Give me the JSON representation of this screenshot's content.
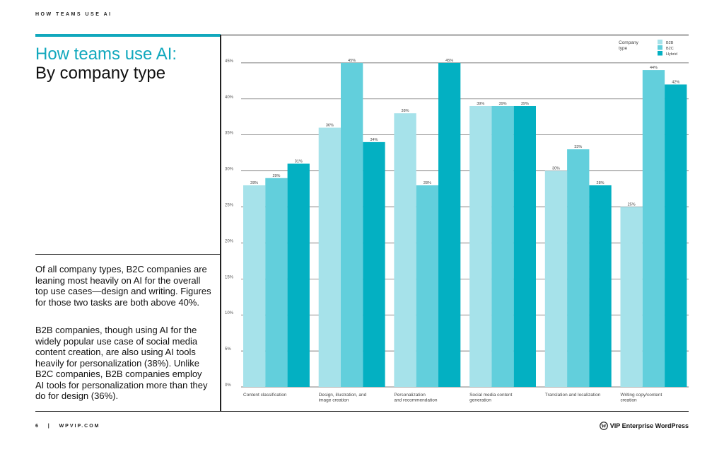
{
  "header": {
    "running_head": "HOW TEAMS USE AI"
  },
  "title": {
    "line1": "How teams use AI:",
    "line2": "By company type"
  },
  "body": {
    "paragraph1": "Of all company types, B2C companies are leaning most heavily on AI for the overall top use cases—design and writing. Figures for those two tasks are both above 40%.",
    "paragraph2": "B2B companies, though using AI for the widely popular use case of social media content creation, are also using AI tools heavily for personalization (38%). Unlike B2C companies, B2B companies employ AI tools for personalization more than they do for design (36%)."
  },
  "footer": {
    "page_number": "6",
    "separator": "|",
    "site": "WPVIP.COM",
    "brand_mark": "W",
    "brand": "VIP Enterprise WordPress"
  },
  "colors": {
    "accent": "#11a8bd",
    "b2b": "#a6e2ea",
    "b2c": "#62cfdc",
    "hybrid": "#03b0c2"
  },
  "chart_data": {
    "type": "bar",
    "categories": [
      [
        "Content classification"
      ],
      [
        "Design, illustration, and",
        "image creation"
      ],
      [
        "Personalization",
        "and recommendation"
      ],
      [
        "Social media content",
        "generation"
      ],
      [
        "Translation and localization"
      ],
      [
        "Writing copy/content",
        "creation"
      ]
    ],
    "series": [
      {
        "name": "B2B",
        "values": [
          28,
          36,
          38,
          39,
          30,
          25
        ]
      },
      {
        "name": "B2C",
        "values": [
          29,
          45,
          28,
          39,
          33,
          44
        ]
      },
      {
        "name": "Hybrid",
        "values": [
          31,
          34,
          45,
          39,
          28,
          42
        ]
      }
    ],
    "data_labels": [
      [
        "28%",
        "36%",
        "38%",
        "39%",
        "30%",
        "25%"
      ],
      [
        "29%",
        "45%",
        "28%",
        "39%",
        "33%",
        "44%"
      ],
      [
        "31%",
        "34%",
        "45%",
        "39%",
        "28%",
        "42%"
      ]
    ],
    "yticks": [
      0,
      5,
      10,
      15,
      20,
      25,
      30,
      35,
      40,
      45
    ],
    "ytick_labels": [
      "0%",
      "5%",
      "10%",
      "15%",
      "20%",
      "25%",
      "30%",
      "35%",
      "40%",
      "45%"
    ],
    "ylim": [
      0,
      45
    ],
    "legend_title": [
      "Company",
      "type"
    ],
    "legend_position": "top-right",
    "grid": true,
    "title": "",
    "xlabel": "",
    "ylabel": ""
  }
}
